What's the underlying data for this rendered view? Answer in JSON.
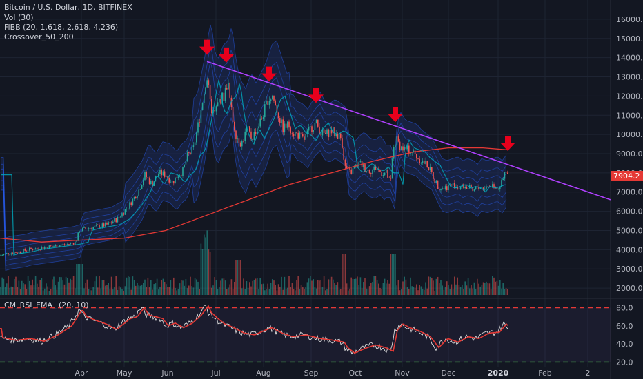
{
  "legend": {
    "symbol": "Bitcoin / U.S. Dollar, 1D, BITFINEX",
    "vol": "Vol (30)",
    "fibb": "FiBB (20, 1.618, 2.618, 4.236)",
    "crossover": "Crossover_50_200",
    "rsi": "CM_RSI_EMA_ (20, 10)"
  },
  "price_badge": "7904.2",
  "colors": {
    "background": "#131722",
    "up": "#26a69a",
    "down": "#ef5350",
    "ma200": "#e53935",
    "ma50": "#00acc1",
    "trendline": "#b040ff",
    "arrow": "#e8001c",
    "rsi_line": "#e0e0e0",
    "rsi_ema": "#e53935",
    "band_outer": "#2962ff"
  },
  "chart_data": {
    "type": "candlestick",
    "y_ticks": [
      "16000.0",
      "15000.0",
      "14000.0",
      "13000.0",
      "12000.0",
      "11000.0",
      "10000.0",
      "9000.0",
      "8000.0",
      "7000.0",
      "6000.0",
      "5000.0",
      "4000.0",
      "3000.0",
      "2000.0"
    ],
    "x_ticks": [
      "Apr",
      "May",
      "Jun",
      "Jul",
      "Aug",
      "Sep",
      "Oct",
      "Nov",
      "Dec",
      "2020",
      "Feb",
      "2"
    ],
    "ylim": [
      1500,
      16500
    ],
    "close_path": [
      [
        0,
        3700
      ],
      [
        10,
        3800
      ],
      [
        20,
        3850
      ],
      [
        30,
        3900
      ],
      [
        40,
        4000
      ],
      [
        50,
        4050
      ],
      [
        60,
        4100
      ],
      [
        70,
        4150
      ],
      [
        80,
        4200
      ],
      [
        90,
        4250
      ],
      [
        100,
        4300
      ],
      [
        110,
        4400
      ],
      [
        115,
        5000
      ],
      [
        125,
        5100
      ],
      [
        140,
        5200
      ],
      [
        155,
        5300
      ],
      [
        170,
        5600
      ],
      [
        185,
        6200
      ],
      [
        200,
        7000
      ],
      [
        210,
        7900
      ],
      [
        220,
        7400
      ],
      [
        230,
        8000
      ],
      [
        240,
        7900
      ],
      [
        250,
        7500
      ],
      [
        258,
        7900
      ],
      [
        265,
        8100
      ],
      [
        272,
        8900
      ],
      [
        280,
        9200
      ],
      [
        290,
        11000
      ],
      [
        297,
        12500
      ],
      [
        300,
        13000
      ],
      [
        305,
        11500
      ],
      [
        310,
        11000
      ],
      [
        318,
        11800
      ],
      [
        325,
        12000
      ],
      [
        330,
        12800
      ],
      [
        336,
        11000
      ],
      [
        342,
        10000
      ],
      [
        350,
        9500
      ],
      [
        358,
        10300
      ],
      [
        365,
        9800
      ],
      [
        372,
        10300
      ],
      [
        380,
        10900
      ],
      [
        388,
        11800
      ],
      [
        395,
        12000
      ],
      [
        402,
        11200
      ],
      [
        410,
        10300
      ],
      [
        418,
        10500
      ],
      [
        425,
        10100
      ],
      [
        432,
        10000
      ],
      [
        440,
        9700
      ],
      [
        450,
        10300
      ],
      [
        458,
        10600
      ],
      [
        465,
        10100
      ],
      [
        472,
        10000
      ],
      [
        480,
        10200
      ],
      [
        488,
        10000
      ],
      [
        495,
        9800
      ],
      [
        500,
        8300
      ],
      [
        508,
        8000
      ],
      [
        515,
        8300
      ],
      [
        522,
        8500
      ],
      [
        530,
        8200
      ],
      [
        538,
        8100
      ],
      [
        545,
        8300
      ],
      [
        552,
        8000
      ],
      [
        560,
        8000
      ],
      [
        566,
        7400
      ],
      [
        570,
        9300
      ],
      [
        575,
        9700
      ],
      [
        582,
        9300
      ],
      [
        590,
        9200
      ],
      [
        598,
        9100
      ],
      [
        605,
        8800
      ],
      [
        612,
        8600
      ],
      [
        620,
        8400
      ],
      [
        628,
        7800
      ],
      [
        635,
        7300
      ],
      [
        642,
        7200
      ],
      [
        650,
        7300
      ],
      [
        658,
        7400
      ],
      [
        665,
        7200
      ],
      [
        672,
        7300
      ],
      [
        680,
        7200
      ],
      [
        686,
        7000
      ],
      [
        692,
        7300
      ],
      [
        700,
        7200
      ],
      [
        708,
        7300
      ],
      [
        715,
        7400
      ],
      [
        722,
        7200
      ],
      [
        728,
        7500
      ],
      [
        732,
        8000
      ],
      [
        736,
        7900
      ]
    ],
    "series": [
      {
        "name": "Vol (30)",
        "role": "volume"
      },
      {
        "name": "FiBB (20, 1.618, 2.618, 4.236)",
        "role": "bands"
      },
      {
        "name": "Crossover_50_200",
        "role": "moving_averages"
      },
      {
        "name": "CM_RSI_EMA_ (20, 10)",
        "role": "rsi"
      }
    ],
    "rsi": {
      "y_ticks": [
        "80.0",
        "60.0",
        "40.0",
        "20.0"
      ],
      "ylim": [
        15,
        88
      ],
      "levels": [
        80,
        20
      ],
      "path": [
        [
          0,
          47
        ],
        [
          20,
          44
        ],
        [
          40,
          46
        ],
        [
          60,
          43
        ],
        [
          80,
          50
        ],
        [
          100,
          60
        ],
        [
          115,
          78
        ],
        [
          122,
          70
        ],
        [
          135,
          66
        ],
        [
          150,
          62
        ],
        [
          165,
          56
        ],
        [
          175,
          62
        ],
        [
          185,
          68
        ],
        [
          195,
          70
        ],
        [
          205,
          80
        ],
        [
          212,
          72
        ],
        [
          222,
          70
        ],
        [
          232,
          68
        ],
        [
          240,
          60
        ],
        [
          250,
          63
        ],
        [
          262,
          58
        ],
        [
          275,
          63
        ],
        [
          288,
          72
        ],
        [
          298,
          82
        ],
        [
          302,
          75
        ],
        [
          312,
          68
        ],
        [
          322,
          62
        ],
        [
          335,
          58
        ],
        [
          350,
          52
        ],
        [
          365,
          50
        ],
        [
          380,
          55
        ],
        [
          390,
          58
        ],
        [
          405,
          52
        ],
        [
          420,
          48
        ],
        [
          440,
          50
        ],
        [
          460,
          46
        ],
        [
          480,
          44
        ],
        [
          495,
          42
        ],
        [
          500,
          36
        ],
        [
          510,
          30
        ],
        [
          525,
          35
        ],
        [
          540,
          39
        ],
        [
          555,
          36
        ],
        [
          566,
          32
        ],
        [
          572,
          55
        ],
        [
          580,
          62
        ],
        [
          590,
          58
        ],
        [
          605,
          54
        ],
        [
          620,
          48
        ],
        [
          632,
          36
        ],
        [
          645,
          46
        ],
        [
          660,
          42
        ],
        [
          675,
          48
        ],
        [
          690,
          46
        ],
        [
          705,
          52
        ],
        [
          720,
          53
        ],
        [
          730,
          62
        ],
        [
          736,
          57
        ]
      ]
    },
    "annotations": [
      "trendline",
      "arrow_markers_at_peaks"
    ]
  }
}
